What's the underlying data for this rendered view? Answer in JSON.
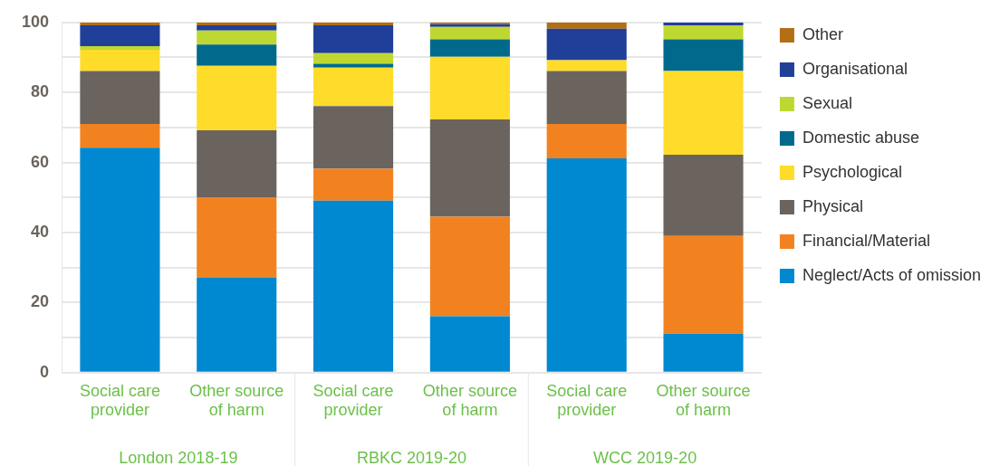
{
  "chart_data": {
    "type": "bar",
    "stacked": true,
    "categories": [
      "Social care provider",
      "Other source of harm",
      "Social care provider",
      "Other source of harm",
      "Social care provider",
      "Other source of harm"
    ],
    "series": [
      {
        "name": "Neglect/Acts of omission",
        "color": "#0088d1",
        "values": [
          64.2,
          27.2,
          49.1,
          16.1,
          61.2,
          11.1
        ]
      },
      {
        "name": "Financial/Material",
        "color": "#f28220",
        "values": [
          6.8,
          22.9,
          9.1,
          28.4,
          9.8,
          27.9
        ]
      },
      {
        "name": "Physical",
        "color": "#6b645e",
        "values": [
          15.1,
          19.1,
          17.9,
          27.8,
          15.1,
          23.2
        ]
      },
      {
        "name": "Psychological",
        "color": "#fedc29",
        "values": [
          6.1,
          18.4,
          11.0,
          17.9,
          3.1,
          23.9
        ]
      },
      {
        "name": "Domestic abuse",
        "color": "#016a8c",
        "values": [
          0,
          6.1,
          1.1,
          5.0,
          0,
          9.1
        ]
      },
      {
        "name": "Sexual",
        "color": "#bed831",
        "values": [
          1.0,
          4.0,
          3.0,
          3.5,
          0,
          4.0
        ]
      },
      {
        "name": "Organisational",
        "color": "#1f3f98",
        "values": [
          6.0,
          1.5,
          8.0,
          0.8,
          9.0,
          0.8
        ]
      },
      {
        "name": "Other",
        "color": "#b46e14",
        "values": [
          0.8,
          0.8,
          0.8,
          0.5,
          1.8,
          0
        ]
      }
    ],
    "annotations": [
      "London 2018-19",
      "RBKC 2019-20",
      "WCC 2019-20"
    ],
    "ylim": [
      0,
      100
    ],
    "yticks": [
      0,
      {
        "value": 10,
        "label": null
      },
      20,
      {
        "value": 30,
        "label": null
      },
      40,
      {
        "value": 50,
        "label": null
      },
      60,
      {
        "value": 70,
        "label": null
      },
      80,
      {
        "value": 90,
        "label": null
      },
      100
    ],
    "grid": "y",
    "legend": "right"
  }
}
